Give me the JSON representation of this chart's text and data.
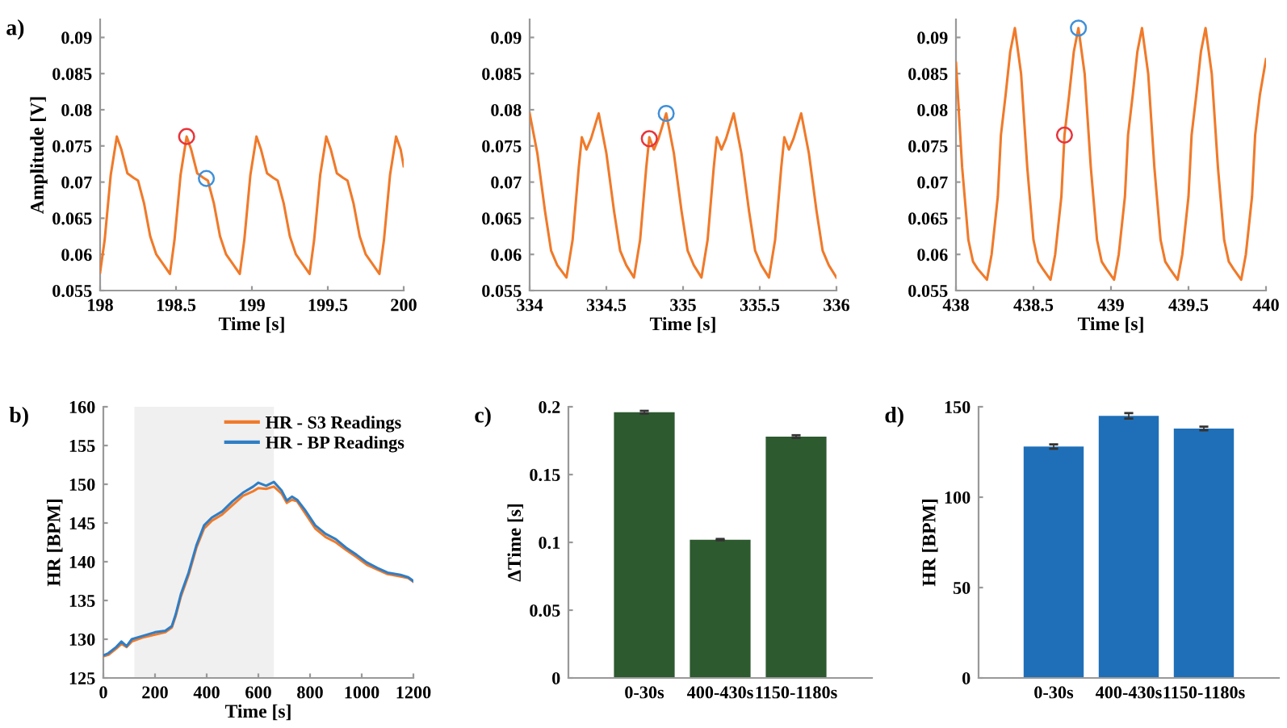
{
  "chart_data": [
    {
      "type": "line",
      "annotations": [
        "a)"
      ],
      "xlabel": "Time [s]",
      "ylabel": "Amplitude [V]",
      "xlim": [
        198,
        200
      ],
      "ylim": [
        0.055,
        0.0925
      ],
      "xticks": [
        198,
        198.5,
        199,
        199.5,
        200
      ],
      "yticks": [
        0.055,
        0.06,
        0.065,
        0.07,
        0.075,
        0.08,
        0.085,
        0.09
      ],
      "series": [
        {
          "color": "#f07a2a",
          "x": [
            198.0,
            198.03,
            198.07,
            198.11,
            198.14,
            198.18,
            198.22,
            198.25,
            198.29,
            198.33,
            198.37,
            198.41,
            198.46,
            198.49,
            198.53,
            198.57,
            198.6,
            198.64,
            198.68,
            198.71,
            198.75,
            198.79,
            198.83,
            198.87,
            198.92,
            198.95,
            198.99,
            199.03,
            199.06,
            199.1,
            199.14,
            199.17,
            199.21,
            199.25,
            199.29,
            199.33,
            199.38,
            199.41,
            199.45,
            199.49,
            199.52,
            199.56,
            199.6,
            199.63,
            199.67,
            199.71,
            199.75,
            199.79,
            199.84,
            199.87,
            199.91,
            199.95,
            199.98,
            200.0
          ],
          "values": [
            0.0575,
            0.062,
            0.071,
            0.0763,
            0.0745,
            0.0712,
            0.0706,
            0.0702,
            0.067,
            0.0625,
            0.06,
            0.0588,
            0.0573,
            0.062,
            0.071,
            0.0763,
            0.0745,
            0.0712,
            0.0706,
            0.0702,
            0.067,
            0.0625,
            0.06,
            0.0588,
            0.0573,
            0.062,
            0.071,
            0.0763,
            0.0745,
            0.0712,
            0.0706,
            0.0702,
            0.067,
            0.0625,
            0.06,
            0.0588,
            0.0573,
            0.062,
            0.071,
            0.0763,
            0.0745,
            0.0712,
            0.0706,
            0.0702,
            0.067,
            0.0625,
            0.06,
            0.0588,
            0.0573,
            0.062,
            0.071,
            0.0763,
            0.0745,
            0.0722
          ]
        },
        {
          "type": "scatter",
          "marker": "circle",
          "color": "#e8343a",
          "x": [
            198.57
          ],
          "values": [
            0.0763
          ]
        },
        {
          "type": "scatter",
          "marker": "circle",
          "color": "#3f8fd8",
          "x": [
            198.7
          ],
          "values": [
            0.0705
          ]
        }
      ]
    },
    {
      "type": "line",
      "xlabel": "Time [s]",
      "xlim": [
        334,
        336
      ],
      "ylim": [
        0.055,
        0.0925
      ],
      "xticks": [
        334,
        334.5,
        335,
        335.5,
        336
      ],
      "yticks": [
        0.055,
        0.06,
        0.065,
        0.07,
        0.075,
        0.08,
        0.085,
        0.09
      ],
      "series": [
        {
          "color": "#f07a2a",
          "x": [
            334.0,
            334.05,
            334.1,
            334.14,
            334.18,
            334.24,
            334.28,
            334.32,
            334.34,
            334.37,
            334.4,
            334.45,
            334.5,
            334.55,
            334.59,
            334.63,
            334.68,
            334.72,
            334.76,
            334.78,
            334.81,
            334.84,
            334.89,
            334.94,
            334.99,
            335.03,
            335.07,
            335.12,
            335.16,
            335.2,
            335.22,
            335.25,
            335.28,
            335.33,
            335.38,
            335.43,
            335.47,
            335.51,
            335.56,
            335.6,
            335.64,
            335.66,
            335.69,
            335.72,
            335.77,
            335.82,
            335.87,
            335.91,
            335.95,
            336.0
          ],
          "values": [
            0.0795,
            0.074,
            0.066,
            0.0605,
            0.0585,
            0.0568,
            0.062,
            0.072,
            0.0762,
            0.0745,
            0.076,
            0.0795,
            0.074,
            0.066,
            0.0605,
            0.0585,
            0.0568,
            0.062,
            0.072,
            0.0762,
            0.0745,
            0.076,
            0.0795,
            0.074,
            0.066,
            0.0605,
            0.0585,
            0.0568,
            0.062,
            0.072,
            0.0762,
            0.0745,
            0.076,
            0.0795,
            0.074,
            0.066,
            0.0605,
            0.0585,
            0.0568,
            0.062,
            0.072,
            0.0762,
            0.0745,
            0.076,
            0.0795,
            0.074,
            0.066,
            0.0605,
            0.0585,
            0.0568
          ]
        },
        {
          "type": "scatter",
          "marker": "circle",
          "color": "#e8343a",
          "x": [
            334.78
          ],
          "values": [
            0.076
          ]
        },
        {
          "type": "scatter",
          "marker": "circle",
          "color": "#3f8fd8",
          "x": [
            334.89
          ],
          "values": [
            0.0795
          ]
        }
      ]
    },
    {
      "type": "line",
      "xlabel": "Time [s]",
      "xlim": [
        438,
        440
      ],
      "ylim": [
        0.055,
        0.0925
      ],
      "xticks": [
        438,
        438.5,
        439,
        439.5,
        440
      ],
      "yticks": [
        0.055,
        0.06,
        0.065,
        0.07,
        0.075,
        0.08,
        0.085,
        0.09
      ],
      "series": [
        {
          "color": "#f07a2a",
          "x": [
            438.0,
            438.04,
            438.08,
            438.11,
            438.14,
            438.2,
            438.23,
            438.27,
            438.29,
            438.32,
            438.35,
            438.38,
            438.42,
            438.46,
            438.5,
            438.53,
            438.56,
            438.61,
            438.64,
            438.68,
            438.7,
            438.73,
            438.76,
            438.79,
            438.83,
            438.87,
            438.91,
            438.94,
            438.97,
            439.02,
            439.05,
            439.09,
            439.11,
            439.14,
            439.17,
            439.2,
            439.24,
            439.28,
            439.32,
            439.35,
            439.38,
            439.43,
            439.46,
            439.5,
            439.52,
            439.55,
            439.58,
            439.61,
            439.65,
            439.69,
            439.73,
            439.76,
            439.79,
            439.84,
            439.87,
            439.91,
            439.93,
            439.96,
            440.0
          ],
          "values": [
            0.0865,
            0.072,
            0.062,
            0.059,
            0.058,
            0.0565,
            0.06,
            0.068,
            0.0765,
            0.082,
            0.088,
            0.0913,
            0.085,
            0.072,
            0.062,
            0.059,
            0.058,
            0.0565,
            0.06,
            0.068,
            0.0765,
            0.082,
            0.088,
            0.0913,
            0.085,
            0.072,
            0.062,
            0.059,
            0.058,
            0.0565,
            0.06,
            0.068,
            0.0765,
            0.082,
            0.088,
            0.0913,
            0.085,
            0.072,
            0.062,
            0.059,
            0.058,
            0.0565,
            0.06,
            0.068,
            0.0765,
            0.082,
            0.088,
            0.0913,
            0.085,
            0.072,
            0.062,
            0.059,
            0.058,
            0.0565,
            0.06,
            0.068,
            0.0765,
            0.082,
            0.087
          ]
        },
        {
          "type": "scatter",
          "marker": "circle",
          "color": "#e8343a",
          "x": [
            438.7
          ],
          "values": [
            0.0765
          ]
        },
        {
          "type": "scatter",
          "marker": "circle",
          "color": "#3f8fd8",
          "x": [
            438.79
          ],
          "values": [
            0.0913
          ]
        }
      ]
    },
    {
      "type": "line",
      "annotations": [
        "b)"
      ],
      "xlabel": "Time [s]",
      "ylabel": "HR [BPM]",
      "xlim": [
        0,
        1200
      ],
      "ylim": [
        125,
        160
      ],
      "xticks": [
        0,
        200,
        400,
        600,
        800,
        1000,
        1200
      ],
      "yticks": [
        125,
        130,
        135,
        140,
        145,
        150,
        155,
        160
      ],
      "legend": "top right",
      "bands": [
        {
          "axis": "x",
          "from": 120,
          "to": 660,
          "color": "#f0f0f0"
        }
      ],
      "series": [
        {
          "name": "HR - S3 Readings",
          "color": "#f07a2a",
          "x": [
            0,
            20,
            50,
            70,
            90,
            110,
            150,
            200,
            240,
            265,
            280,
            300,
            330,
            360,
            390,
            420,
            460,
            500,
            540,
            580,
            600,
            630,
            660,
            690,
            710,
            730,
            750,
            780,
            820,
            860,
            900,
            940,
            980,
            1020,
            1060,
            1100,
            1150,
            1180,
            1200
          ],
          "values": [
            127.8,
            128.0,
            128.8,
            129.4,
            129.0,
            129.7,
            130.2,
            130.6,
            130.9,
            131.5,
            133.0,
            135.5,
            138.3,
            141.8,
            144.3,
            145.3,
            146.1,
            147.3,
            148.5,
            149.1,
            149.5,
            149.4,
            149.7,
            148.8,
            147.6,
            148.0,
            147.8,
            146.3,
            144.3,
            143.2,
            142.5,
            141.5,
            140.6,
            139.6,
            139.0,
            138.4,
            138.1,
            137.9,
            137.4
          ]
        },
        {
          "name": "HR - BP Readings",
          "color": "#2f7ec5",
          "x": [
            0,
            20,
            50,
            70,
            90,
            110,
            150,
            200,
            240,
            265,
            280,
            300,
            330,
            360,
            390,
            420,
            460,
            500,
            540,
            580,
            600,
            630,
            660,
            690,
            710,
            730,
            750,
            780,
            820,
            860,
            900,
            940,
            980,
            1020,
            1060,
            1100,
            1150,
            1180,
            1200
          ],
          "values": [
            127.9,
            128.2,
            129.0,
            129.7,
            129.1,
            130.0,
            130.4,
            130.9,
            131.1,
            131.7,
            133.2,
            135.8,
            138.6,
            142.1,
            144.7,
            145.7,
            146.5,
            147.8,
            148.9,
            149.7,
            150.2,
            149.8,
            150.3,
            149.2,
            147.9,
            148.4,
            148.0,
            146.7,
            144.7,
            143.6,
            142.9,
            141.8,
            140.9,
            139.9,
            139.2,
            138.6,
            138.3,
            138.0,
            137.5
          ]
        }
      ]
    },
    {
      "type": "bar",
      "annotations": [
        "c)"
      ],
      "ylabel": "ΔTime [s]",
      "categories": [
        "0-30s",
        "400-430s",
        "1150-1180s"
      ],
      "ylim": [
        0,
        0.2
      ],
      "yticks": [
        0,
        0.05,
        0.1,
        0.15,
        0.2
      ],
      "color": "#2d5a2f",
      "values": [
        0.196,
        0.102,
        0.178
      ],
      "errors": [
        0.001,
        0.0005,
        0.001
      ]
    },
    {
      "type": "bar",
      "annotations": [
        "d)"
      ],
      "ylabel": "HR [BPM]",
      "categories": [
        "0-30s",
        "400-430s",
        "1150-1180s"
      ],
      "ylim": [
        0,
        150
      ],
      "yticks": [
        0,
        50,
        100,
        150
      ],
      "color": "#1f6fb8",
      "values": [
        128,
        145,
        138
      ],
      "errors": [
        1.2,
        1.5,
        1
      ]
    }
  ]
}
